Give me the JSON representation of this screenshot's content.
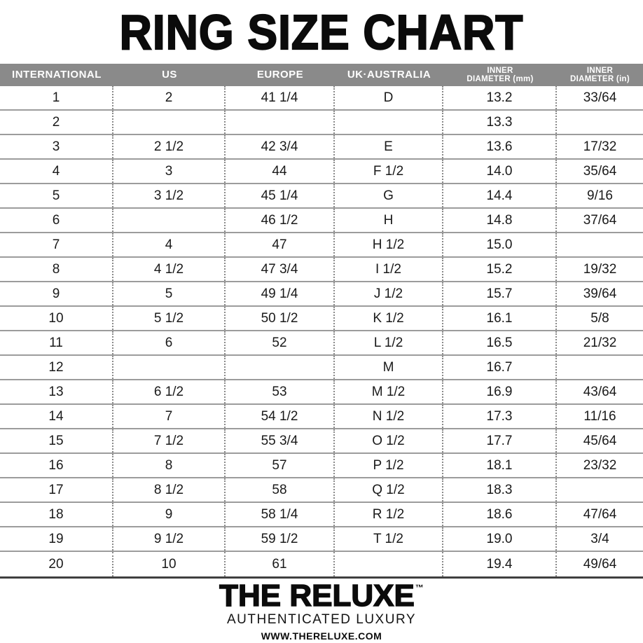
{
  "title": "RING SIZE CHART",
  "colors": {
    "header_bar_bg": "#8a8a8a",
    "header_bar_text": "#ffffff",
    "row_divider": "#9c9c9c",
    "table_bottom_line": "#3f3f3f",
    "dotted_separator": "#8a8a8a",
    "body_text": "#1a1a1a",
    "title_text": "#0b0b0b"
  },
  "table": {
    "columns": [
      {
        "label": "INTERNATIONAL"
      },
      {
        "label": "US"
      },
      {
        "label": "EUROPE"
      },
      {
        "label": "UK·AUSTRALIA"
      },
      {
        "label": "INNER\nDIAMETER (mm)"
      },
      {
        "label": "INNER\nDIAMETER (in)"
      }
    ],
    "rows": [
      [
        "1",
        "2",
        "41 1/4",
        "D",
        "13.2",
        "33/64"
      ],
      [
        "2",
        "",
        "",
        "",
        "13.3",
        ""
      ],
      [
        "3",
        "2 1/2",
        "42 3/4",
        "E",
        "13.6",
        "17/32"
      ],
      [
        "4",
        "3",
        "44",
        "F 1/2",
        "14.0",
        "35/64"
      ],
      [
        "5",
        "3 1/2",
        "45 1/4",
        "G",
        "14.4",
        "9/16"
      ],
      [
        "6",
        "",
        "46 1/2",
        "H",
        "14.8",
        "37/64"
      ],
      [
        "7",
        "4",
        "47",
        "H 1/2",
        "15.0",
        ""
      ],
      [
        "8",
        "4 1/2",
        "47 3/4",
        "I 1/2",
        "15.2",
        "19/32"
      ],
      [
        "9",
        "5",
        "49 1/4",
        "J 1/2",
        "15.7",
        "39/64"
      ],
      [
        "10",
        "5 1/2",
        "50 1/2",
        "K 1/2",
        "16.1",
        "5/8"
      ],
      [
        "11",
        "6",
        "52",
        "L 1/2",
        "16.5",
        "21/32"
      ],
      [
        "12",
        "",
        "",
        "M",
        "16.7",
        ""
      ],
      [
        "13",
        "6 1/2",
        "53",
        "M 1/2",
        "16.9",
        "43/64"
      ],
      [
        "14",
        "7",
        "54 1/2",
        "N 1/2",
        "17.3",
        "11/16"
      ],
      [
        "15",
        "7 1/2",
        "55 3/4",
        "O 1/2",
        "17.7",
        "45/64"
      ],
      [
        "16",
        "8",
        "57",
        "P 1/2",
        "18.1",
        "23/32"
      ],
      [
        "17",
        "8 1/2",
        "58",
        "Q 1/2",
        "18.3",
        ""
      ],
      [
        "18",
        "9",
        "58 1/4",
        "R 1/2",
        "18.6",
        "47/64"
      ],
      [
        "19",
        "9 1/2",
        "59 1/2",
        "T 1/2",
        "19.0",
        "3/4"
      ],
      [
        "20",
        "10",
        "61",
        "",
        "19.4",
        "49/64"
      ]
    ]
  },
  "footer": {
    "brand": "THE RELUXE",
    "trademark": "™",
    "tagline": "AUTHENTICATED LUXURY",
    "website": "WWW.THERELUXE.COM"
  }
}
